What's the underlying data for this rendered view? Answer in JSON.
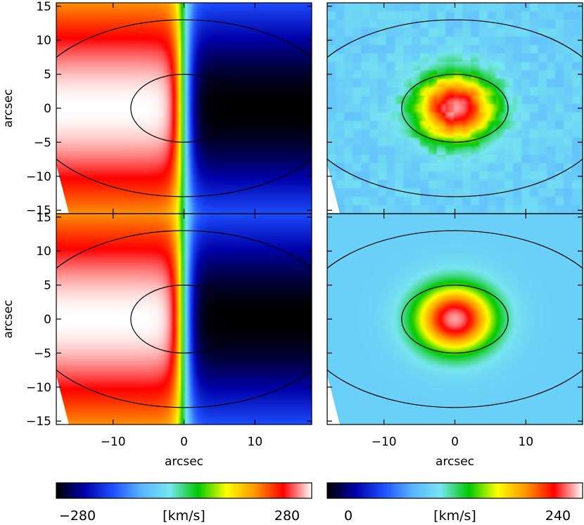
{
  "chart_data": {
    "type": "heatmap",
    "panels": [
      {
        "name": "velocity-data",
        "map": "velocity",
        "row": 0,
        "col": 0,
        "noise": true
      },
      {
        "name": "dispersion-data",
        "map": "dispersion",
        "row": 0,
        "col": 1,
        "noise": true
      },
      {
        "name": "velocity-model",
        "map": "velocity",
        "row": 1,
        "col": 0,
        "noise": false
      },
      {
        "name": "dispersion-model",
        "map": "dispersion",
        "row": 1,
        "col": 1,
        "noise": false
      }
    ],
    "xlim": [
      -18,
      18
    ],
    "ylim": [
      -15.5,
      15.5
    ],
    "xlabel": "arcsec",
    "ylabel": "arcsec",
    "xticks": [
      {
        "value": -10,
        "label": "−10"
      },
      {
        "value": 0,
        "label": "0"
      },
      {
        "value": 10,
        "label": "10"
      }
    ],
    "yticks": [
      {
        "value": 15,
        "label": "15"
      },
      {
        "value": 10,
        "label": "10"
      },
      {
        "value": 5,
        "label": "5"
      },
      {
        "value": 0,
        "label": "0"
      },
      {
        "value": -5,
        "label": "−5"
      },
      {
        "value": -10,
        "label": "−10"
      },
      {
        "value": -15,
        "label": "−15"
      }
    ],
    "ellipses": [
      {
        "a": 7.5,
        "b": 5
      },
      {
        "a": 22,
        "b": 13
      }
    ],
    "colorbars": [
      {
        "name": "velocity-colorbar",
        "min": -280,
        "max": 280,
        "min_label": "−280",
        "max_label": "280",
        "unit": "[km/s]"
      },
      {
        "name": "dispersion-colorbar",
        "min": 0,
        "max": 240,
        "min_label": "0",
        "max_label": "240",
        "unit": "[km/s]"
      }
    ],
    "colormap": [
      "#000000",
      "#0000aa",
      "#1e50ff",
      "#5ab4ff",
      "#78e6f0",
      "#00c800",
      "#ffff00",
      "#ff9600",
      "#ff0000",
      "#ffffff"
    ]
  }
}
